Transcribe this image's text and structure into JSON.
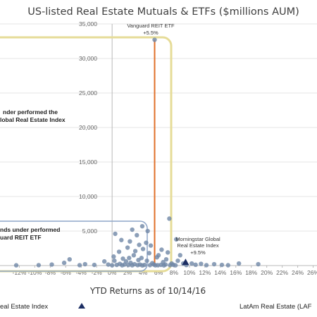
{
  "chart_data": {
    "type": "scatter",
    "title": "US-listed Real Estate Mutuals & ETFs ($millions AUM)",
    "xlabel": "YTD Returns as of 10/14/16",
    "ylabel": "",
    "xlim": [
      -14.5,
      26.5
    ],
    "ylim": [
      0,
      35000
    ],
    "y_ticks": [
      5000,
      10000,
      15000,
      20000,
      25000,
      30000,
      35000
    ],
    "y_tick_labels": [
      "5,000",
      "10,000",
      "15,000",
      "20,000",
      "25,000",
      "30,000",
      "35,000"
    ],
    "x_ticks": [
      -12,
      -10,
      -8,
      -6,
      -4,
      -2,
      0,
      2,
      4,
      6,
      8,
      10,
      12,
      14,
      16,
      18,
      20,
      22,
      24,
      26
    ],
    "x_tick_labels": [
      "-12%",
      "-10%",
      "-8%",
      "-6%",
      "-4%",
      "-2%",
      "0%",
      "2%",
      "4%",
      "6%",
      "8%",
      "10%",
      "12%",
      "14%",
      "16%",
      "18%",
      "20%",
      "22%",
      "24%",
      "26%"
    ],
    "grid": "horizontal",
    "points": [
      {
        "x": 5.5,
        "y": 32700
      },
      {
        "x": 7.4,
        "y": 6800
      },
      {
        "x": 3.9,
        "y": 5700
      },
      {
        "x": 2.6,
        "y": 5200
      },
      {
        "x": 4.6,
        "y": 5000
      },
      {
        "x": 0.4,
        "y": 4600
      },
      {
        "x": 3.2,
        "y": 4400
      },
      {
        "x": 8.3,
        "y": 3800
      },
      {
        "x": 1.2,
        "y": 3700
      },
      {
        "x": 2.3,
        "y": 3500
      },
      {
        "x": 4.4,
        "y": 3300
      },
      {
        "x": 3.5,
        "y": 3000
      },
      {
        "x": 5.0,
        "y": 2900
      },
      {
        "x": 2.0,
        "y": 2600
      },
      {
        "x": 4.0,
        "y": 2400
      },
      {
        "x": 6.4,
        "y": 2300
      },
      {
        "x": 3.0,
        "y": 2100
      },
      {
        "x": 0.9,
        "y": 2000
      },
      {
        "x": 7.2,
        "y": 1900
      },
      {
        "x": 4.8,
        "y": 1800
      },
      {
        "x": 6.0,
        "y": 1500
      },
      {
        "x": 8.8,
        "y": 1500
      },
      {
        "x": 2.8,
        "y": 1500
      },
      {
        "x": 0.2,
        "y": 1300
      },
      {
        "x": 5.8,
        "y": 1200
      },
      {
        "x": 3.8,
        "y": 1100
      },
      {
        "x": 1.4,
        "y": 1000
      },
      {
        "x": -5.5,
        "y": 900
      },
      {
        "x": 7.0,
        "y": 900
      },
      {
        "x": 4.5,
        "y": 700
      },
      {
        "x": 8.5,
        "y": 700
      },
      {
        "x": -1.0,
        "y": 600
      },
      {
        "x": 1.8,
        "y": 600
      },
      {
        "x": 6.6,
        "y": 500
      },
      {
        "x": -6.2,
        "y": 400
      },
      {
        "x": 2.4,
        "y": 400
      },
      {
        "x": 5.2,
        "y": 350
      },
      {
        "x": 9.2,
        "y": 300
      },
      {
        "x": 10.3,
        "y": 300
      },
      {
        "x": 11.5,
        "y": 250
      },
      {
        "x": 13.2,
        "y": 200
      },
      {
        "x": 16.4,
        "y": 300
      },
      {
        "x": 18.9,
        "y": 200
      },
      {
        "x": -7.8,
        "y": 150
      },
      {
        "x": -3.5,
        "y": 200
      },
      {
        "x": -2.3,
        "y": 100
      },
      {
        "x": -0.5,
        "y": 150
      },
      {
        "x": 0.6,
        "y": 100
      },
      {
        "x": 1.0,
        "y": 250
      },
      {
        "x": 1.6,
        "y": 150
      },
      {
        "x": 2.1,
        "y": 80
      },
      {
        "x": 2.9,
        "y": 200
      },
      {
        "x": 3.3,
        "y": 60
      },
      {
        "x": 3.6,
        "y": 150
      },
      {
        "x": 4.2,
        "y": 100
      },
      {
        "x": 4.9,
        "y": 60
      },
      {
        "x": 5.4,
        "y": 150
      },
      {
        "x": 5.9,
        "y": 60
      },
      {
        "x": 6.3,
        "y": 100
      },
      {
        "x": 6.9,
        "y": 150
      },
      {
        "x": 7.5,
        "y": 60
      },
      {
        "x": 7.9,
        "y": 120
      },
      {
        "x": 8.2,
        "y": 40
      },
      {
        "x": 9.6,
        "y": 80
      },
      {
        "x": 10.8,
        "y": 120
      },
      {
        "x": 12.2,
        "y": 60
      },
      {
        "x": 14.2,
        "y": 100
      },
      {
        "x": 15.0,
        "y": 50
      },
      {
        "x": -9.5,
        "y": 60
      },
      {
        "x": -12.4,
        "y": 40
      },
      {
        "x": -4.2,
        "y": 60
      },
      {
        "x": 0.0,
        "y": 40
      },
      {
        "x": 1.3,
        "y": 40
      },
      {
        "x": 2.6,
        "y": 40
      },
      {
        "x": 3.9,
        "y": 30
      },
      {
        "x": 5.6,
        "y": 40
      },
      {
        "x": 6.7,
        "y": 30
      },
      {
        "x": 7.7,
        "y": 300
      },
      {
        "x": 0.3,
        "y": 700
      },
      {
        "x": 2.2,
        "y": 1100
      },
      {
        "x": 3.4,
        "y": 800
      }
    ],
    "vanguard_return": 5.5,
    "benchmark_marker": {
      "x": 9.5,
      "y": 500
    },
    "annotations": [
      {
        "id": "vanguard",
        "lines": [
          "Vanguard REIT ETF",
          "+5.5%"
        ]
      },
      {
        "id": "morningstar",
        "lines": [
          "Morningstar Global",
          "Real Estate Index",
          "+9.5%"
        ]
      },
      {
        "id": "big-box",
        "lines": [
          "nder performed the",
          "lobal Real Estate Index"
        ]
      },
      {
        "id": "small-box",
        "lines": [
          "nds under performed",
          "uard REIT ETF"
        ]
      }
    ],
    "legend": [
      {
        "label": "eal Estate Index",
        "marker": "triangle"
      },
      {
        "label": "LatAm Real Estate (LAF",
        "marker": "none"
      }
    ],
    "colors": {
      "point": "#6f87a6",
      "vanguard_line": "#e0702a",
      "yellow_box": "#e6dc98",
      "blue_box": "#8fa6c8",
      "triangle": "#1c2e63",
      "grid": "#e6e6e6",
      "axis": "#b8b8b8"
    }
  }
}
